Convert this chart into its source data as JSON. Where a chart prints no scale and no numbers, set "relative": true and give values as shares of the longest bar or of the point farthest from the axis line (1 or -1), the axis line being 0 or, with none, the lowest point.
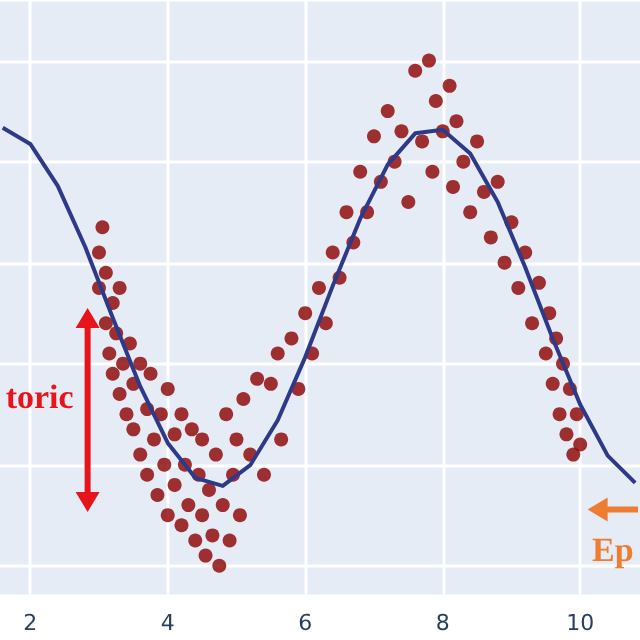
{
  "chart_data": {
    "type": "scatter",
    "relative": true,
    "grid": true,
    "marker": "circle",
    "xlim": [
      1.56,
      10.87
    ],
    "xticks": [
      2,
      4,
      6,
      8,
      10
    ],
    "annotations": [
      "toric",
      "Ep"
    ],
    "series": [
      {
        "type": "scatter",
        "color": "#8b0000",
        "x": [
          3.0,
          3.0,
          3.05,
          3.1,
          3.1,
          3.15,
          3.2,
          3.2,
          3.25,
          3.3,
          3.3,
          3.35,
          3.4,
          3.45,
          3.5,
          3.5,
          3.6,
          3.6,
          3.7,
          3.7,
          3.75,
          3.8,
          3.85,
          3.9,
          3.95,
          4.0,
          4.0,
          4.1,
          4.1,
          4.2,
          4.2,
          4.25,
          4.3,
          4.35,
          4.4,
          4.45,
          4.5,
          4.5,
          4.55,
          4.6,
          4.65,
          4.7,
          4.75,
          4.8,
          4.85,
          4.9,
          4.95,
          5.0,
          5.05,
          5.1,
          5.2,
          5.3,
          5.4,
          5.5,
          5.6,
          5.65,
          5.8,
          5.9,
          6.0,
          6.1,
          6.2,
          6.3,
          6.4,
          6.5,
          6.6,
          6.7,
          6.8,
          6.9,
          7.0,
          7.1,
          7.2,
          7.3,
          7.4,
          7.5,
          7.6,
          7.7,
          7.8,
          7.85,
          7.9,
          8.0,
          8.1,
          8.15,
          8.2,
          8.3,
          8.4,
          8.5,
          8.6,
          8.7,
          8.8,
          8.9,
          9.0,
          9.1,
          9.2,
          9.3,
          9.4,
          9.5,
          9.55,
          9.6,
          9.65,
          9.7,
          9.75,
          9.8,
          9.85,
          9.9,
          9.95,
          10.0
        ],
        "values": [
          0.62,
          0.55,
          0.67,
          0.48,
          0.58,
          0.42,
          0.52,
          0.38,
          0.46,
          0.34,
          0.55,
          0.4,
          0.3,
          0.44,
          0.36,
          0.27,
          0.4,
          0.22,
          0.31,
          0.18,
          0.38,
          0.25,
          0.14,
          0.3,
          0.2,
          0.35,
          0.1,
          0.26,
          0.16,
          0.3,
          0.08,
          0.2,
          0.12,
          0.27,
          0.05,
          0.18,
          0.1,
          0.25,
          0.02,
          0.15,
          0.06,
          0.22,
          0.0,
          0.12,
          0.3,
          0.05,
          0.18,
          0.25,
          0.1,
          0.33,
          0.22,
          0.37,
          0.18,
          0.36,
          0.42,
          0.25,
          0.45,
          0.35,
          0.5,
          0.42,
          0.55,
          0.48,
          0.62,
          0.57,
          0.7,
          0.64,
          0.78,
          0.7,
          0.85,
          0.76,
          0.9,
          0.8,
          0.86,
          0.72,
          0.98,
          0.84,
          1.0,
          0.78,
          0.92,
          0.86,
          0.95,
          0.75,
          0.88,
          0.8,
          0.7,
          0.84,
          0.74,
          0.65,
          0.76,
          0.6,
          0.68,
          0.55,
          0.62,
          0.48,
          0.56,
          0.42,
          0.5,
          0.36,
          0.45,
          0.3,
          0.4,
          0.26,
          0.35,
          0.22,
          0.3,
          0.24
        ]
      },
      {
        "type": "line",
        "color": "#2e3a87",
        "marker": "none",
        "x": [
          1.6,
          2.0,
          2.4,
          2.8,
          3.2,
          3.6,
          4.0,
          4.4,
          4.8,
          5.2,
          5.6,
          6.0,
          6.4,
          6.8,
          7.2,
          7.6,
          8.0,
          8.4,
          8.8,
          9.2,
          9.6,
          10.0,
          10.4,
          10.8
        ],
        "values": [
          0.867,
          0.835,
          0.752,
          0.631,
          0.491,
          0.355,
          0.243,
          0.174,
          0.158,
          0.199,
          0.288,
          0.413,
          0.554,
          0.687,
          0.794,
          0.856,
          0.863,
          0.816,
          0.72,
          0.591,
          0.45,
          0.319,
          0.218,
          0.164
        ]
      }
    ]
  }
}
